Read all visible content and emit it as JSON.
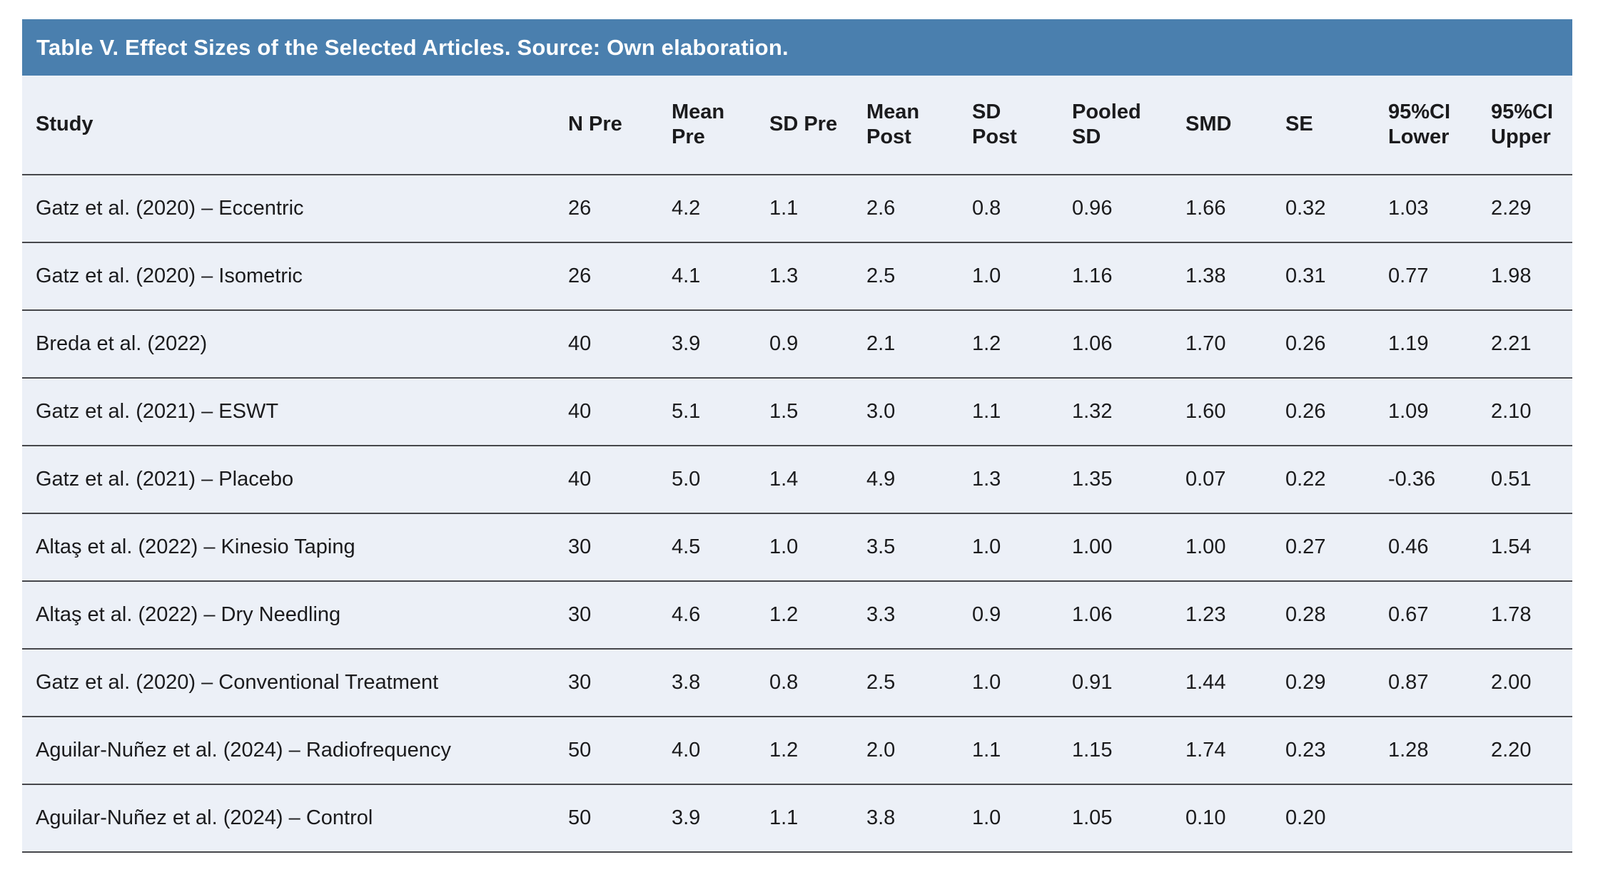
{
  "title": "Table V. Effect Sizes of the Selected Articles. Source: Own elaboration.",
  "colors": {
    "title_bar_bg": "#4a7fae",
    "title_text": "#ffffff",
    "row_bg": "#ecf0f7",
    "divider": "#46474b",
    "body_text": "#1b1b1d"
  },
  "table": {
    "columns": [
      {
        "key": "study",
        "label": "Study"
      },
      {
        "key": "n_pre",
        "label": "N Pre"
      },
      {
        "key": "mean_pre",
        "label": "Mean\nPre"
      },
      {
        "key": "sd_pre",
        "label": "SD Pre"
      },
      {
        "key": "mean_post",
        "label": "Mean\nPost"
      },
      {
        "key": "sd_post",
        "label": "SD\nPost"
      },
      {
        "key": "pooled_sd",
        "label": "Pooled\nSD"
      },
      {
        "key": "smd",
        "label": "SMD"
      },
      {
        "key": "se",
        "label": "SE"
      },
      {
        "key": "ci_lower",
        "label": "95%CI\nLower"
      },
      {
        "key": "ci_upper",
        "label": "95%CI\nUpper"
      }
    ],
    "rows": [
      {
        "study": "Gatz et al. (2020) – Eccentric",
        "n_pre": "26",
        "mean_pre": "4.2",
        "sd_pre": "1.1",
        "mean_post": "2.6",
        "sd_post": "0.8",
        "pooled_sd": "0.96",
        "smd": "1.66",
        "se": "0.32",
        "ci_lower": "1.03",
        "ci_upper": "2.29"
      },
      {
        "study": "Gatz et al. (2020) – Isometric",
        "n_pre": "26",
        "mean_pre": "4.1",
        "sd_pre": "1.3",
        "mean_post": "2.5",
        "sd_post": "1.0",
        "pooled_sd": "1.16",
        "smd": "1.38",
        "se": "0.31",
        "ci_lower": "0.77",
        "ci_upper": "1.98"
      },
      {
        "study": "Breda et al. (2022)",
        "n_pre": "40",
        "mean_pre": "3.9",
        "sd_pre": "0.9",
        "mean_post": "2.1",
        "sd_post": "1.2",
        "pooled_sd": "1.06",
        "smd": "1.70",
        "se": "0.26",
        "ci_lower": "1.19",
        "ci_upper": "2.21"
      },
      {
        "study": "Gatz et al. (2021) – ESWT",
        "n_pre": "40",
        "mean_pre": "5.1",
        "sd_pre": "1.5",
        "mean_post": "3.0",
        "sd_post": "1.1",
        "pooled_sd": "1.32",
        "smd": "1.60",
        "se": "0.26",
        "ci_lower": "1.09",
        "ci_upper": "2.10"
      },
      {
        "study": "Gatz et al. (2021) – Placebo",
        "n_pre": "40",
        "mean_pre": "5.0",
        "sd_pre": "1.4",
        "mean_post": "4.9",
        "sd_post": "1.3",
        "pooled_sd": "1.35",
        "smd": "0.07",
        "se": "0.22",
        "ci_lower": "-0.36",
        "ci_upper": "0.51"
      },
      {
        "study": "Altaş et al. (2022) – Kinesio Taping",
        "n_pre": "30",
        "mean_pre": "4.5",
        "sd_pre": "1.0",
        "mean_post": "3.5",
        "sd_post": "1.0",
        "pooled_sd": "1.00",
        "smd": "1.00",
        "se": "0.27",
        "ci_lower": "0.46",
        "ci_upper": "1.54"
      },
      {
        "study": "Altaş et al. (2022) – Dry Needling",
        "n_pre": "30",
        "mean_pre": "4.6",
        "sd_pre": "1.2",
        "mean_post": "3.3",
        "sd_post": "0.9",
        "pooled_sd": "1.06",
        "smd": "1.23",
        "se": "0.28",
        "ci_lower": "0.67",
        "ci_upper": "1.78"
      },
      {
        "study": "Gatz et al. (2020) – Conventional Treatment",
        "n_pre": "30",
        "mean_pre": "3.8",
        "sd_pre": "0.8",
        "mean_post": "2.5",
        "sd_post": "1.0",
        "pooled_sd": "0.91",
        "smd": "1.44",
        "se": "0.29",
        "ci_lower": "0.87",
        "ci_upper": "2.00"
      },
      {
        "study": "Aguilar-Nuñez et al. (2024) – Radiofrequency",
        "n_pre": "50",
        "mean_pre": "4.0",
        "sd_pre": "1.2",
        "mean_post": "2.0",
        "sd_post": "1.1",
        "pooled_sd": "1.15",
        "smd": "1.74",
        "se": "0.23",
        "ci_lower": "1.28",
        "ci_upper": "2.20"
      },
      {
        "study": "Aguilar-Nuñez et al. (2024) – Control",
        "n_pre": "50",
        "mean_pre": "3.9",
        "sd_pre": "1.1",
        "mean_post": "3.8",
        "sd_post": "1.0",
        "pooled_sd": "1.05",
        "smd": "0.10",
        "se": "0.20",
        "ci_lower": "",
        "ci_upper": ""
      }
    ]
  }
}
